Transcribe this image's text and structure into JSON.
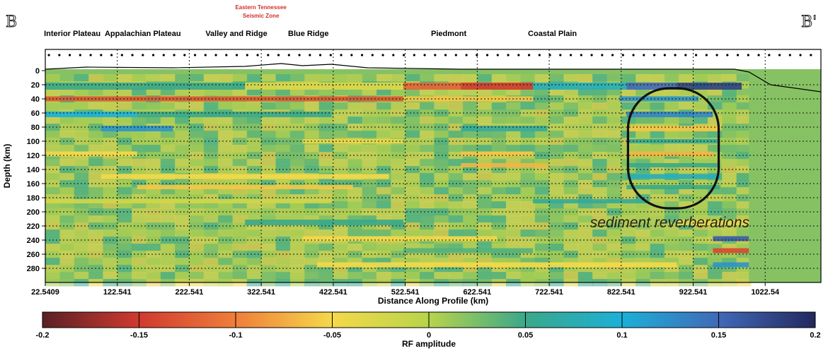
{
  "chart_data": {
    "type": "heatmap",
    "corner_labels": {
      "left": "B",
      "right": "B'"
    },
    "provinces": [
      {
        "label": "Interior Plateau",
        "x": 60
      },
      {
        "label": "Appalachian Plateau",
        "x": 158
      },
      {
        "label": "Valley and Ridge",
        "x": 288
      },
      {
        "label": "Blue Ridge",
        "x": 388
      },
      {
        "label": "Piedmont",
        "x": 583
      },
      {
        "label": "Coastal Plain",
        "x": 727
      }
    ],
    "seismic_zone": {
      "line1": "Eastern Tennessee",
      "line2": "Seismic Zone",
      "x": 322
    },
    "xlabel": "Distance Along Profile (km)",
    "ylabel": "Depth (km)",
    "x_ticks": [
      "22.5409",
      "122.541",
      "222.541",
      "322.541",
      "422.541",
      "522.541",
      "622.541",
      "722.541",
      "822.541",
      "922.541",
      "1022.54"
    ],
    "x_tick_values": [
      22.5409,
      122.541,
      222.541,
      322.541,
      422.541,
      522.541,
      622.541,
      722.541,
      822.541,
      922.541,
      1022.54
    ],
    "xlim": [
      22.5409,
      1100
    ],
    "y_ticks": [
      "0",
      "20",
      "40",
      "60",
      "80",
      "100",
      "120",
      "140",
      "160",
      "180",
      "200",
      "220",
      "240",
      "260",
      "280"
    ],
    "y_tick_values": [
      0,
      20,
      40,
      60,
      80,
      100,
      120,
      140,
      160,
      180,
      200,
      220,
      240,
      260,
      280
    ],
    "ylim": [
      -30,
      300
    ],
    "annotation": {
      "text": "sediment reverberations",
      "x": 890,
      "y": 215
    },
    "colorbar": {
      "label": "RF amplitude",
      "ticks": [
        "-0.2",
        "-0.15",
        "-0.1",
        "-0.05",
        "0",
        "0.05",
        "0.1",
        "0.15",
        "0.2"
      ],
      "range": [
        -0.2,
        0.2
      ]
    },
    "color_stops": [
      "#5a2025",
      "#d03a2f",
      "#f07e3a",
      "#f5d94a",
      "#b8d44a",
      "#3aa88a",
      "#1cb0d8",
      "#4169b8",
      "#22285e"
    ],
    "bands": [
      {
        "depth": 22,
        "thickness": 10,
        "segments": [
          [
            -0.08,
            300,
            0.05
          ],
          [
            300,
            520,
            -0.03
          ],
          [
            520,
            600,
            -0.12
          ],
          [
            600,
            700,
            -0.15
          ],
          [
            700,
            830,
            0.08
          ],
          [
            830,
            900,
            0.15
          ],
          [
            900,
            990,
            0.18
          ]
        ]
      },
      {
        "depth": 40,
        "thickness": 7,
        "segments": [
          [
            22,
            520,
            -0.13
          ],
          [
            520,
            700,
            -0.06
          ],
          [
            820,
            930,
            0.12
          ]
        ]
      },
      {
        "depth": 62,
        "thickness": 8,
        "segments": [
          [
            22,
            150,
            0.1
          ],
          [
            150,
            420,
            0.05
          ],
          [
            830,
            950,
            0.13
          ]
        ]
      },
      {
        "depth": 82,
        "thickness": 8,
        "segments": [
          [
            100,
            200,
            0.12
          ],
          [
            600,
            720,
            0.06
          ],
          [
            830,
            960,
            -0.06
          ]
        ]
      },
      {
        "depth": 100,
        "thickness": 6,
        "segments": [
          [
            380,
            520,
            -0.04
          ],
          [
            830,
            960,
            0.06
          ]
        ]
      },
      {
        "depth": 118,
        "thickness": 7,
        "segments": [
          [
            22,
            150,
            -0.05
          ],
          [
            600,
            700,
            -0.06
          ],
          [
            830,
            950,
            -0.07
          ]
        ]
      },
      {
        "depth": 134,
        "thickness": 6,
        "segments": [
          [
            600,
            720,
            -0.07
          ],
          [
            830,
            960,
            0.05
          ]
        ]
      },
      {
        "depth": 150,
        "thickness": 7,
        "segments": [
          [
            100,
            500,
            -0.05
          ],
          [
            830,
            960,
            0.08
          ]
        ]
      },
      {
        "depth": 165,
        "thickness": 6,
        "segments": [
          [
            150,
            450,
            -0.06
          ],
          [
            830,
            960,
            0.05
          ]
        ]
      },
      {
        "depth": 185,
        "thickness": 6,
        "segments": [
          [
            22,
            420,
            -0.02
          ],
          [
            700,
            860,
            0.06
          ]
        ]
      },
      {
        "depth": 215,
        "thickness": 8,
        "segments": [
          [
            300,
            520,
            0.05
          ],
          [
            900,
            1000,
            -0.04
          ]
        ]
      },
      {
        "depth": 238,
        "thickness": 7,
        "segments": [
          [
            380,
            650,
            -0.05
          ],
          [
            950,
            1000,
            0.16
          ]
        ]
      },
      {
        "depth": 255,
        "thickness": 7,
        "segments": [
          [
            520,
            700,
            0.04
          ],
          [
            950,
            1000,
            -0.14
          ]
        ]
      },
      {
        "depth": 275,
        "thickness": 7,
        "segments": [
          [
            400,
            900,
            -0.05
          ],
          [
            950,
            1000,
            0.12
          ]
        ]
      }
    ]
  }
}
